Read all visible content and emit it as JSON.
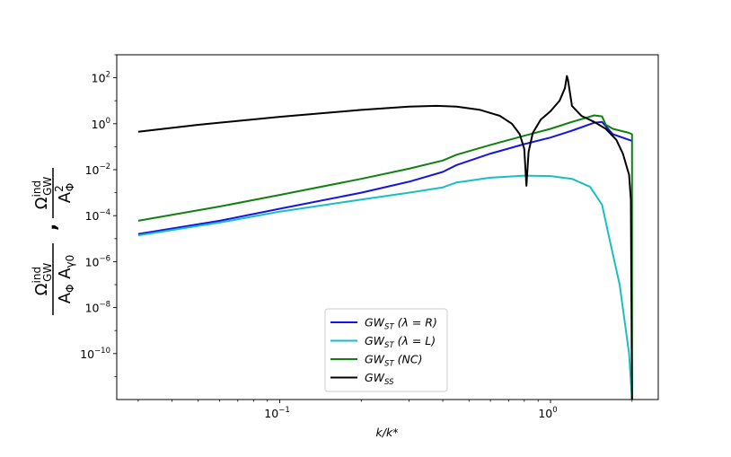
{
  "chart_data": {
    "type": "line",
    "xscale": "log",
    "yscale": "log",
    "xlim": [
      0.025,
      2.5
    ],
    "ylim": [
      1e-12,
      1000.0
    ],
    "xlabel": "k/k*",
    "ylabel": "",
    "xticks": [
      {
        "value": 0.1,
        "base": "10",
        "exp": "−1"
      },
      {
        "value": 1,
        "base": "10",
        "exp": "0"
      }
    ],
    "yticks": [
      {
        "value": 100,
        "base": "10",
        "exp": "2"
      },
      {
        "value": 1,
        "base": "10",
        "exp": "0"
      },
      {
        "value": 0.01,
        "base": "10",
        "exp": "−2"
      },
      {
        "value": 0.0001,
        "base": "10",
        "exp": "−4"
      },
      {
        "value": 1e-06,
        "base": "10",
        "exp": "−6"
      },
      {
        "value": 1e-08,
        "base": "10",
        "exp": "−8"
      },
      {
        "value": 1e-10,
        "base": "10",
        "exp": "−10"
      }
    ],
    "legend": "lower-center",
    "grid": false,
    "series": [
      {
        "name": "GW_ST (λ = R)",
        "label_main": "GW",
        "label_sub": "ST",
        "label_rest": " (λ = R)",
        "color": "#1515e0",
        "x": [
          0.03,
          0.06,
          0.1,
          0.2,
          0.3,
          0.4,
          0.45,
          0.6,
          0.8,
          1.0,
          1.2,
          1.45,
          1.55,
          1.7,
          2.0
        ],
        "y": [
          1.6e-05,
          6e-05,
          0.0002,
          0.001,
          0.003,
          0.008,
          0.016,
          0.05,
          0.13,
          0.25,
          0.5,
          1.1,
          1.2,
          0.35,
          0.18
        ]
      },
      {
        "name": "GW_ST (λ = L)",
        "label_main": "GW",
        "label_sub": "ST",
        "label_rest": " (λ = L)",
        "color": "#17bfc4",
        "x": [
          0.03,
          0.06,
          0.1,
          0.2,
          0.3,
          0.4,
          0.45,
          0.6,
          0.8,
          1.0,
          1.2,
          1.4,
          1.55,
          1.65,
          1.8,
          1.95,
          2.0
        ],
        "y": [
          1.4e-05,
          5e-05,
          0.00015,
          0.0005,
          0.001,
          0.0017,
          0.0028,
          0.0045,
          0.0055,
          0.0053,
          0.004,
          0.0018,
          0.0003,
          1e-05,
          1e-07,
          1e-10,
          1e-12
        ]
      },
      {
        "name": "GW_ST (NC)",
        "label_main": "GW",
        "label_sub": "ST",
        "label_rest": " (NC)",
        "color": "#108010",
        "x": [
          0.03,
          0.06,
          0.1,
          0.2,
          0.3,
          0.4,
          0.45,
          0.6,
          0.8,
          1.0,
          1.2,
          1.45,
          1.55,
          1.6,
          1.7,
          1.95,
          2.0,
          2.0
        ],
        "y": [
          6e-05,
          0.00025,
          0.0008,
          0.004,
          0.011,
          0.025,
          0.045,
          0.12,
          0.3,
          0.6,
          1.2,
          2.3,
          2.1,
          0.9,
          0.6,
          0.4,
          0.35,
          1e-12
        ]
      },
      {
        "name": "GW_SS",
        "label_main": "GW",
        "label_sub": "SS",
        "label_rest": "",
        "color": "#000000",
        "x": [
          0.03,
          0.05,
          0.1,
          0.2,
          0.3,
          0.38,
          0.45,
          0.55,
          0.65,
          0.72,
          0.77,
          0.8,
          0.815,
          0.83,
          0.86,
          0.92,
          1.0,
          1.08,
          1.13,
          1.15,
          1.16,
          1.2,
          1.3,
          1.45,
          1.6,
          1.75,
          1.85,
          1.95,
          1.98,
          2.0
        ],
        "y": [
          0.45,
          0.9,
          2.0,
          4.0,
          5.5,
          6.0,
          5.5,
          4.0,
          2.2,
          1.0,
          0.35,
          0.08,
          0.002,
          0.06,
          0.4,
          1.5,
          3.5,
          10,
          35,
          120,
          80,
          6,
          2.2,
          1.2,
          0.6,
          0.2,
          0.05,
          0.006,
          0.0005,
          1e-12
        ]
      }
    ]
  }
}
